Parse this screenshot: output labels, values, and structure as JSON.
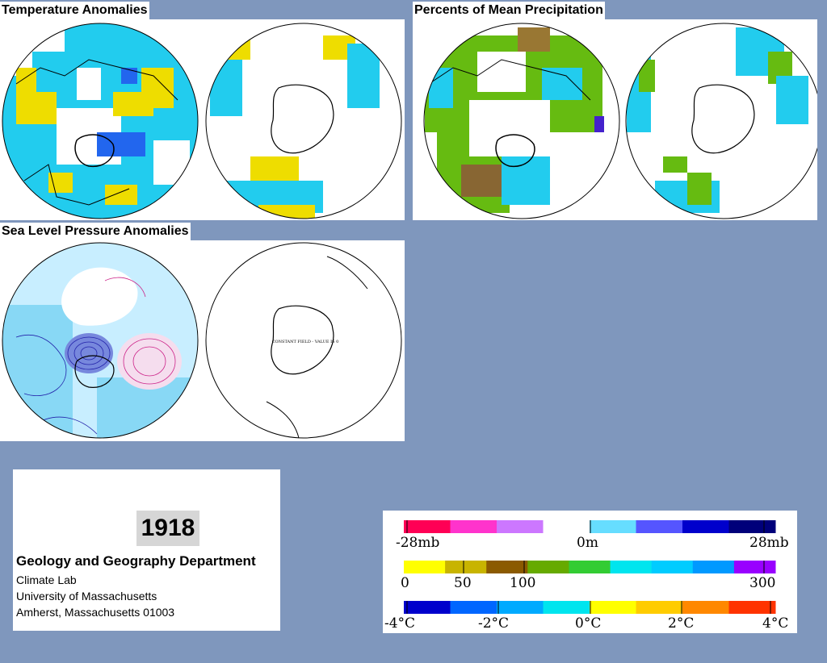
{
  "panels": {
    "temperature": {
      "title": "Temperature Anomalies"
    },
    "precipitation": {
      "title": "Percents of Mean Precipitation"
    },
    "pressure": {
      "title": "Sea Level Pressure Anomalies",
      "southern_note": "CONSTANT FIELD - VALUE IS 0"
    }
  },
  "info": {
    "year": "1918",
    "department": "Geology and Geography Department",
    "lines": [
      "Climate Lab",
      "University of Massachusetts",
      "Amherst, Massachusetts 01003"
    ]
  },
  "legends": {
    "pressure": {
      "labels": [
        "-28mb",
        "0m",
        "28mb"
      ],
      "colors": [
        "#ff0055",
        "#ff33cc",
        "#cc77ff",
        "#ffffff",
        "#66ddff",
        "#5555ff",
        "#0000cc",
        "#00007a"
      ]
    },
    "precipitation": {
      "labels": [
        "0",
        "50",
        "100",
        "300"
      ],
      "colors": [
        "#ffff00",
        "#c8b400",
        "#8b5a00",
        "#66aa00",
        "#33cc33",
        "#00e5ee",
        "#00ccff",
        "#0099ff",
        "#9900ff"
      ]
    },
    "temperature": {
      "labels": [
        "-4°C",
        "-2°C",
        "0°C",
        "2°C",
        "4°C"
      ],
      "colors": [
        "#0000cc",
        "#0066ff",
        "#00aaff",
        "#00e5ee",
        "#ffff00",
        "#ffcc00",
        "#ff8800",
        "#ff3300"
      ]
    }
  }
}
